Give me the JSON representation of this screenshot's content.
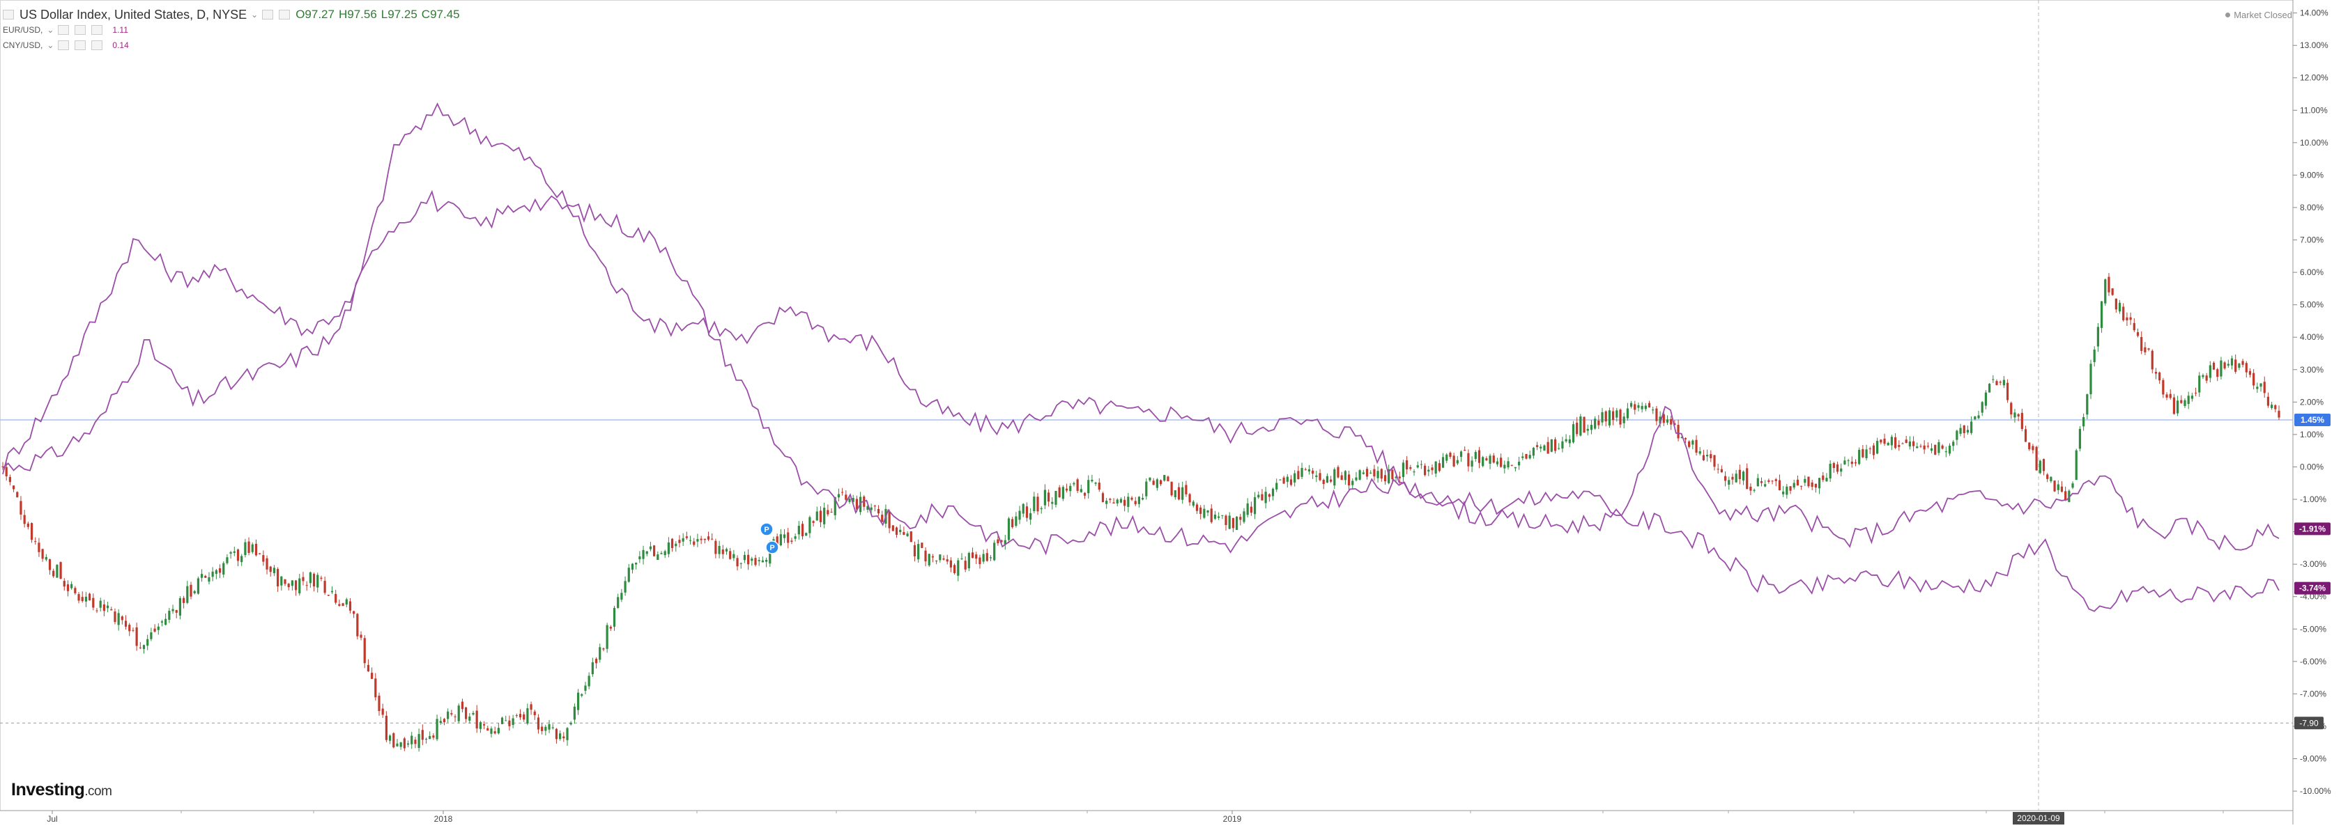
{
  "legend": {
    "main_title": "US Dollar Index, United States, D, NYSE",
    "open": "O97.27",
    "high": "H97.56",
    "low": "L97.25",
    "close": "C97.45",
    "sub1_name": "EUR/USD,",
    "sub1_value": "1.11",
    "sub2_name": "CNY/USD,",
    "sub2_value": "0.14"
  },
  "status": {
    "text": "Market Closed"
  },
  "brand": {
    "name": "Investing",
    "suffix": ".com"
  },
  "colors": {
    "up": "#2e8b3f",
    "down": "#c0392b",
    "compare": "#9b4ea8",
    "hline": "#a9c4ec",
    "tag_main": "#3b78e7",
    "tag_compare": "#7b1a72"
  },
  "chart_data": {
    "type": "line",
    "y_axis": {
      "ticks": [
        14,
        13,
        12,
        11,
        10,
        9,
        8,
        7,
        6,
        5,
        4,
        3,
        2,
        1,
        0,
        -1,
        -2,
        -3,
        -4,
        -5,
        -6,
        -7,
        -8,
        -9,
        -10
      ],
      "ylim": [
        -10.6,
        14.4
      ],
      "unit": "%"
    },
    "x_axis": {
      "labels": [
        "Jul",
        "2018",
        "2019"
      ],
      "cursor_label": "2020-01-09"
    },
    "last_value_tags": [
      {
        "text": "1.45%",
        "value": 1.45,
        "role": "main"
      },
      {
        "text": "-1.91%",
        "value": -1.91,
        "role": "compare"
      },
      {
        "text": "-3.74%",
        "value": -3.74,
        "role": "compare"
      }
    ],
    "reference_line": {
      "text": "-7.90",
      "value": -7.9
    },
    "markers": [
      {
        "text": "P"
      },
      {
        "text": "P"
      }
    ],
    "series": [
      {
        "type": "candlestick",
        "values": [
          0,
          -2.5,
          -3.9,
          -4.3,
          -5.5,
          -4.2,
          -3.2,
          -2.5,
          -3.6,
          -3.4,
          -4.5,
          -8.5,
          -8.3,
          -7.6,
          -8.0,
          -7.7,
          -8.3,
          -5.8,
          -3.0,
          -2.4,
          -2.2,
          -3.0,
          -2.5,
          -1.8,
          -1.0,
          -1.3,
          -2.5,
          -3.1,
          -2.8,
          -1.5,
          -0.8,
          -0.6,
          -1.2,
          -0.4,
          -1.1,
          -1.8,
          -1.0,
          -0.2,
          -0.3,
          -0.4,
          -0.1,
          0.1,
          0.3,
          0.2,
          0.5,
          1.3,
          1.5,
          1.9,
          0.8,
          -0.1,
          -0.5,
          -0.6,
          -0.3,
          0.4,
          0.8,
          0.5,
          1.0,
          2.8,
          0.2,
          -1.0,
          5.6,
          4.0,
          1.8,
          3.0,
          3.2,
          1.45
        ]
      },
      {
        "name": "EUR/USD",
        "type": "line",
        "values": [
          0,
          0.3,
          1.3,
          3.8,
          2.0,
          2.7,
          3.2,
          4.0,
          7.2,
          8.3,
          7.4,
          8.2,
          8.0,
          7.5,
          6.8,
          4.0,
          1.5,
          -0.8,
          -1.2,
          -1.8,
          -1.2,
          -2.3,
          -2.4,
          -1.9,
          -1.8,
          -2.2,
          -2.4,
          -1.5,
          -1.0,
          -0.6,
          -0.8,
          -1.5,
          -1.7,
          -1.8,
          -1.6,
          -1.7,
          -2.5,
          -3.6,
          -3.8,
          -3.4,
          -3.5,
          -3.7,
          -3.5,
          -2.2,
          -4.6,
          -3.8,
          -4.0,
          -3.8,
          -3.74
        ]
      },
      {
        "name": "CNY/USD",
        "type": "line",
        "values": [
          0,
          1.8,
          4.3,
          7.0,
          5.8,
          6.0,
          5.0,
          4.2,
          5.1,
          10.0,
          11.0,
          10.2,
          9.5,
          7.9,
          5.5,
          4.3,
          4.5,
          3.8,
          5.0,
          4.0,
          3.8,
          2.0,
          1.4,
          1.2,
          1.8,
          1.9,
          1.6,
          1.7,
          1.0,
          1.4,
          1.3,
          1.0,
          -0.5,
          -1.0,
          -1.2,
          -1.0,
          -0.8,
          -1.4,
          1.9,
          -1.2,
          -1.5,
          -1.4,
          -2.3,
          -1.9,
          -1.3,
          -0.9,
          -1.2,
          -1.1,
          -0.3,
          -2.0,
          -1.8,
          -2.5,
          -1.91
        ]
      }
    ]
  }
}
